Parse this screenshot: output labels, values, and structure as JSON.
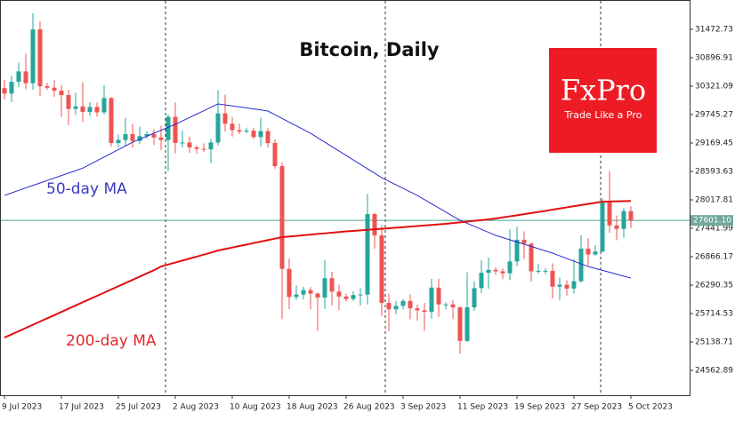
{
  "chart_data": {
    "type": "candlestick",
    "title": "Bitcoin, Daily",
    "x_labels": [
      "9 Jul 2023",
      "17 Jul 2023",
      "25 Jul 2023",
      "2 Aug 2023",
      "10 Aug 2023",
      "18 Aug 2023",
      "26 Aug 2023",
      "3 Sep 2023",
      "11 Sep 2023",
      "19 Sep 2023",
      "27 Sep 2023",
      "5 Oct 2023"
    ],
    "ylim": [
      24060,
      32066
    ],
    "yticks": [
      31472.73,
      30896.91,
      30321.09,
      29745.27,
      29169.45,
      28593.63,
      28017.81,
      27441.99,
      26866.17,
      26290.35,
      25714.53,
      25138.71,
      24562.89
    ],
    "up_color": "#26a69a",
    "down_color": "#ef5350",
    "candles": [
      [
        30280,
        30450,
        30050,
        30170
      ],
      [
        30170,
        30530,
        30000,
        30410
      ],
      [
        30410,
        30800,
        30300,
        30620
      ],
      [
        30620,
        30980,
        30260,
        30380
      ],
      [
        30380,
        31800,
        30250,
        31470
      ],
      [
        31470,
        31630,
        30120,
        30320
      ],
      [
        30320,
        30390,
        30250,
        30290
      ],
      [
        30290,
        30440,
        30100,
        30230
      ],
      [
        30230,
        30340,
        29700,
        30140
      ],
      [
        30140,
        30250,
        29530,
        29860
      ],
      [
        29860,
        30190,
        29740,
        29910
      ],
      [
        29910,
        30400,
        29600,
        29800
      ],
      [
        29800,
        30000,
        29720,
        29900
      ],
      [
        29900,
        29990,
        29700,
        29790
      ],
      [
        29790,
        30340,
        29750,
        30080
      ],
      [
        30080,
        30100,
        29100,
        29170
      ],
      [
        29170,
        29340,
        29080,
        29230
      ],
      [
        29230,
        29670,
        29100,
        29350
      ],
      [
        29350,
        29560,
        29080,
        29210
      ],
      [
        29210,
        29500,
        29150,
        29310
      ],
      [
        29310,
        29410,
        29260,
        29350
      ],
      [
        29350,
        29450,
        29130,
        29280
      ],
      [
        29280,
        29520,
        29030,
        29230
      ],
      [
        29230,
        29750,
        28600,
        29700
      ],
      [
        29700,
        29990,
        28960,
        29170
      ],
      [
        29170,
        29420,
        29080,
        29180
      ],
      [
        29180,
        29300,
        28970,
        29080
      ],
      [
        29080,
        29120,
        28950,
        29050
      ],
      [
        29050,
        29160,
        28990,
        29040
      ],
      [
        29040,
        29250,
        28760,
        29180
      ],
      [
        29180,
        30240,
        29120,
        29770
      ],
      [
        29770,
        30150,
        29400,
        29560
      ],
      [
        29560,
        29700,
        29300,
        29430
      ],
      [
        29430,
        29560,
        29350,
        29400
      ],
      [
        29400,
        29480,
        29360,
        29420
      ],
      [
        29420,
        29480,
        29250,
        29290
      ],
      [
        29290,
        29680,
        29100,
        29410
      ],
      [
        29410,
        29470,
        29080,
        29170
      ],
      [
        29170,
        29240,
        28650,
        28700
      ],
      [
        28700,
        28780,
        25600,
        26620
      ],
      [
        26620,
        26830,
        25800,
        26050
      ],
      [
        26050,
        26280,
        25990,
        26100
      ],
      [
        26100,
        26260,
        26000,
        26190
      ],
      [
        26190,
        26250,
        25800,
        26120
      ],
      [
        26120,
        26140,
        25360,
        26040
      ],
      [
        26040,
        26800,
        25810,
        26430
      ],
      [
        26430,
        26560,
        25880,
        26160
      ],
      [
        26160,
        26300,
        25780,
        26060
      ],
      [
        26060,
        26120,
        25960,
        26010
      ],
      [
        26010,
        26170,
        25970,
        26090
      ],
      [
        26090,
        26230,
        25880,
        26100
      ],
      [
        26100,
        28140,
        25900,
        27730
      ],
      [
        27730,
        27760,
        27030,
        27300
      ],
      [
        27300,
        27500,
        25670,
        25930
      ],
      [
        25930,
        26120,
        25360,
        25800
      ],
      [
        25800,
        25970,
        25700,
        25870
      ],
      [
        25870,
        26010,
        25800,
        25970
      ],
      [
        25970,
        26100,
        25600,
        25820
      ],
      [
        25820,
        25900,
        25570,
        25780
      ],
      [
        25780,
        25930,
        25360,
        25750
      ],
      [
        25750,
        26420,
        25610,
        26240
      ],
      [
        26240,
        26420,
        25650,
        25900
      ],
      [
        25900,
        25940,
        25800,
        25900
      ],
      [
        25900,
        25990,
        25600,
        25840
      ],
      [
        25840,
        25860,
        24900,
        25160
      ],
      [
        25160,
        26550,
        25140,
        25840
      ],
      [
        25840,
        26370,
        25770,
        26230
      ],
      [
        26230,
        26800,
        26130,
        26540
      ],
      [
        26540,
        26850,
        26220,
        26600
      ],
      [
        26600,
        26650,
        26500,
        26570
      ],
      [
        26570,
        26630,
        26410,
        26530
      ],
      [
        26530,
        27420,
        26390,
        26770
      ],
      [
        26770,
        27470,
        26680,
        27210
      ],
      [
        27210,
        27380,
        26820,
        27130
      ],
      [
        27130,
        27150,
        26360,
        26570
      ],
      [
        26570,
        26720,
        26520,
        26580
      ],
      [
        26580,
        26630,
        26510,
        26580
      ],
      [
        26580,
        26730,
        26020,
        26260
      ],
      [
        26260,
        26450,
        25990,
        26300
      ],
      [
        26300,
        26390,
        26080,
        26220
      ],
      [
        26220,
        26820,
        26120,
        26370
      ],
      [
        26370,
        27300,
        26340,
        27030
      ],
      [
        27030,
        27240,
        26690,
        26910
      ],
      [
        26910,
        27100,
        26890,
        26970
      ],
      [
        26970,
        28050,
        26960,
        27990
      ],
      [
        27990,
        28600,
        27350,
        27500
      ],
      [
        27500,
        27700,
        27200,
        27430
      ],
      [
        27430,
        27850,
        27250,
        27790
      ],
      [
        27790,
        27890,
        27450,
        27600
      ]
    ],
    "lines": [
      {
        "name": "50-day MA",
        "color": "#2a2ad0",
        "values": [
          28107,
          28160,
          28210,
          28260,
          28310,
          28360,
          28410,
          28460,
          28510,
          28560,
          28610,
          28660,
          28735,
          28810,
          28885,
          28960,
          29035,
          29110,
          29187,
          29247,
          29307,
          29367,
          29427,
          29487,
          29547,
          29616,
          29685,
          29754,
          29823,
          29892,
          29961,
          29940,
          29920,
          29900,
          29880,
          29860,
          29840,
          29817,
          29742,
          29667,
          29592,
          29517,
          29442,
          29367,
          29277,
          29187,
          29097,
          29007,
          28917,
          28827,
          28737,
          28647,
          28557,
          28467,
          28395,
          28323,
          28251,
          28179,
          28107,
          28023,
          27939,
          27855,
          27771,
          27687,
          27604,
          27543,
          27482,
          27421,
          27360,
          27298,
          27253,
          27208,
          27163,
          27118,
          27073,
          27028,
          26983,
          26938,
          26884,
          26830,
          26776,
          26722,
          26668,
          26629,
          26590,
          26551,
          26512,
          26473,
          26434
        ]
      },
      {
        "name": "200-day MA",
        "color": "#e01010",
        "values": [
          25228,
          25293,
          25358,
          25423,
          25488,
          25553,
          25618,
          25683,
          25748,
          25813,
          25878,
          25943,
          26008,
          26073,
          26138,
          26203,
          26268,
          26333,
          26398,
          26463,
          26528,
          26593,
          26668,
          26708,
          26748,
          26788,
          26828,
          26868,
          26908,
          26948,
          26992,
          27022,
          27052,
          27082,
          27112,
          27142,
          27172,
          27202,
          27232,
          27262,
          27275,
          27288,
          27301,
          27314,
          27327,
          27340,
          27353,
          27366,
          27379,
          27388,
          27399,
          27410,
          27421,
          27432,
          27443,
          27454,
          27465,
          27476,
          27487,
          27498,
          27509,
          27520,
          27532,
          27547,
          27562,
          27577,
          27592,
          27607,
          27622,
          27640,
          27662,
          27684,
          27706,
          27728,
          27750,
          27772,
          27794,
          27820,
          27843,
          27866,
          27889,
          27912,
          27935,
          27958,
          27982,
          27985,
          27988,
          27992,
          27995
        ]
      }
    ],
    "current_price": {
      "value": 27601.1,
      "label": "27601.10"
    },
    "logo": {
      "name": "FxPro",
      "slogan": "Trade Like a Pro"
    }
  }
}
